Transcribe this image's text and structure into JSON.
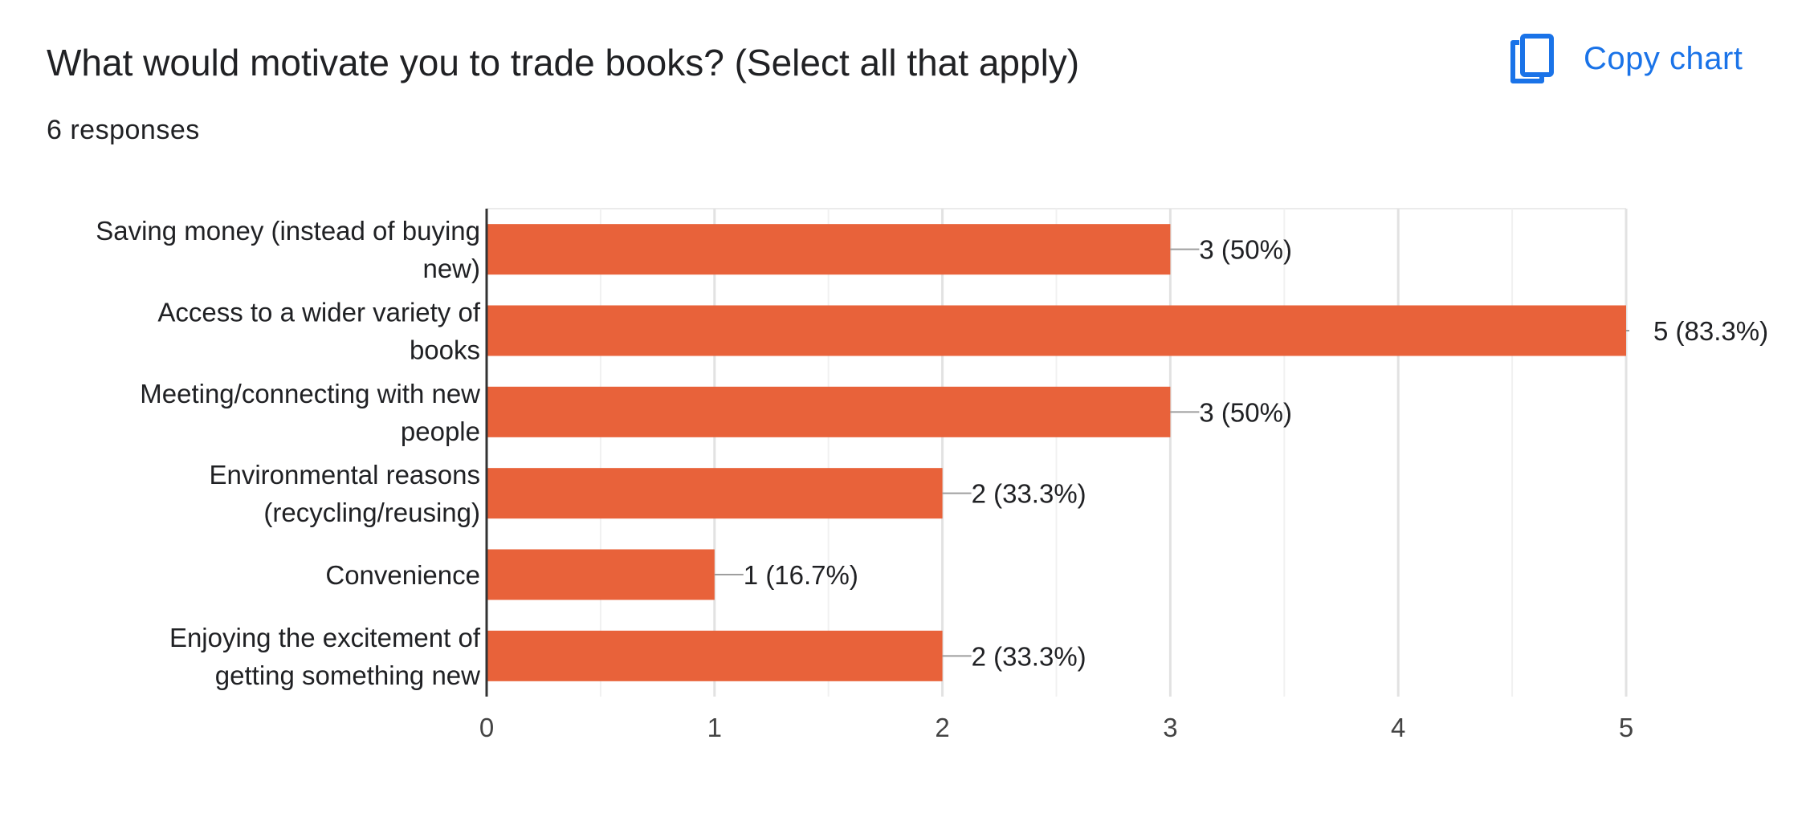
{
  "header": {
    "title": "What would motivate you to trade books? (Select all that apply)",
    "responses": "6 responses",
    "copy_chart_label": "Copy chart",
    "copy_chart_icon": "copy-icon"
  },
  "colors": {
    "bar": "#E8623A",
    "accent": "#1a73e8",
    "grid": "#ebebeb",
    "axis": "#333333",
    "leader": "#9e9e9e"
  },
  "chart_data": {
    "type": "bar",
    "orientation": "horizontal",
    "categories": [
      [
        "Saving money (instead of buying",
        "new)"
      ],
      [
        "Access to a wider variety of",
        "books"
      ],
      [
        "Meeting/connecting with new",
        "people"
      ],
      [
        "Environmental reasons",
        "(recycling/reusing)"
      ],
      [
        "Convenience"
      ],
      [
        "Enjoying the excitement of",
        "getting something new"
      ]
    ],
    "values": [
      3,
      5,
      3,
      2,
      1,
      2
    ],
    "data_labels": [
      "3 (50%)",
      "5 (83.3%)",
      "3 (50%)",
      "2 (33.3%)",
      "1 (16.7%)",
      "2 (33.3%)"
    ],
    "xlim": [
      0,
      5
    ],
    "xticks": [
      0,
      1,
      2,
      3,
      4,
      5
    ],
    "grid": true,
    "title": "What would motivate you to trade books? (Select all that apply)",
    "xlabel": "",
    "ylabel": ""
  }
}
